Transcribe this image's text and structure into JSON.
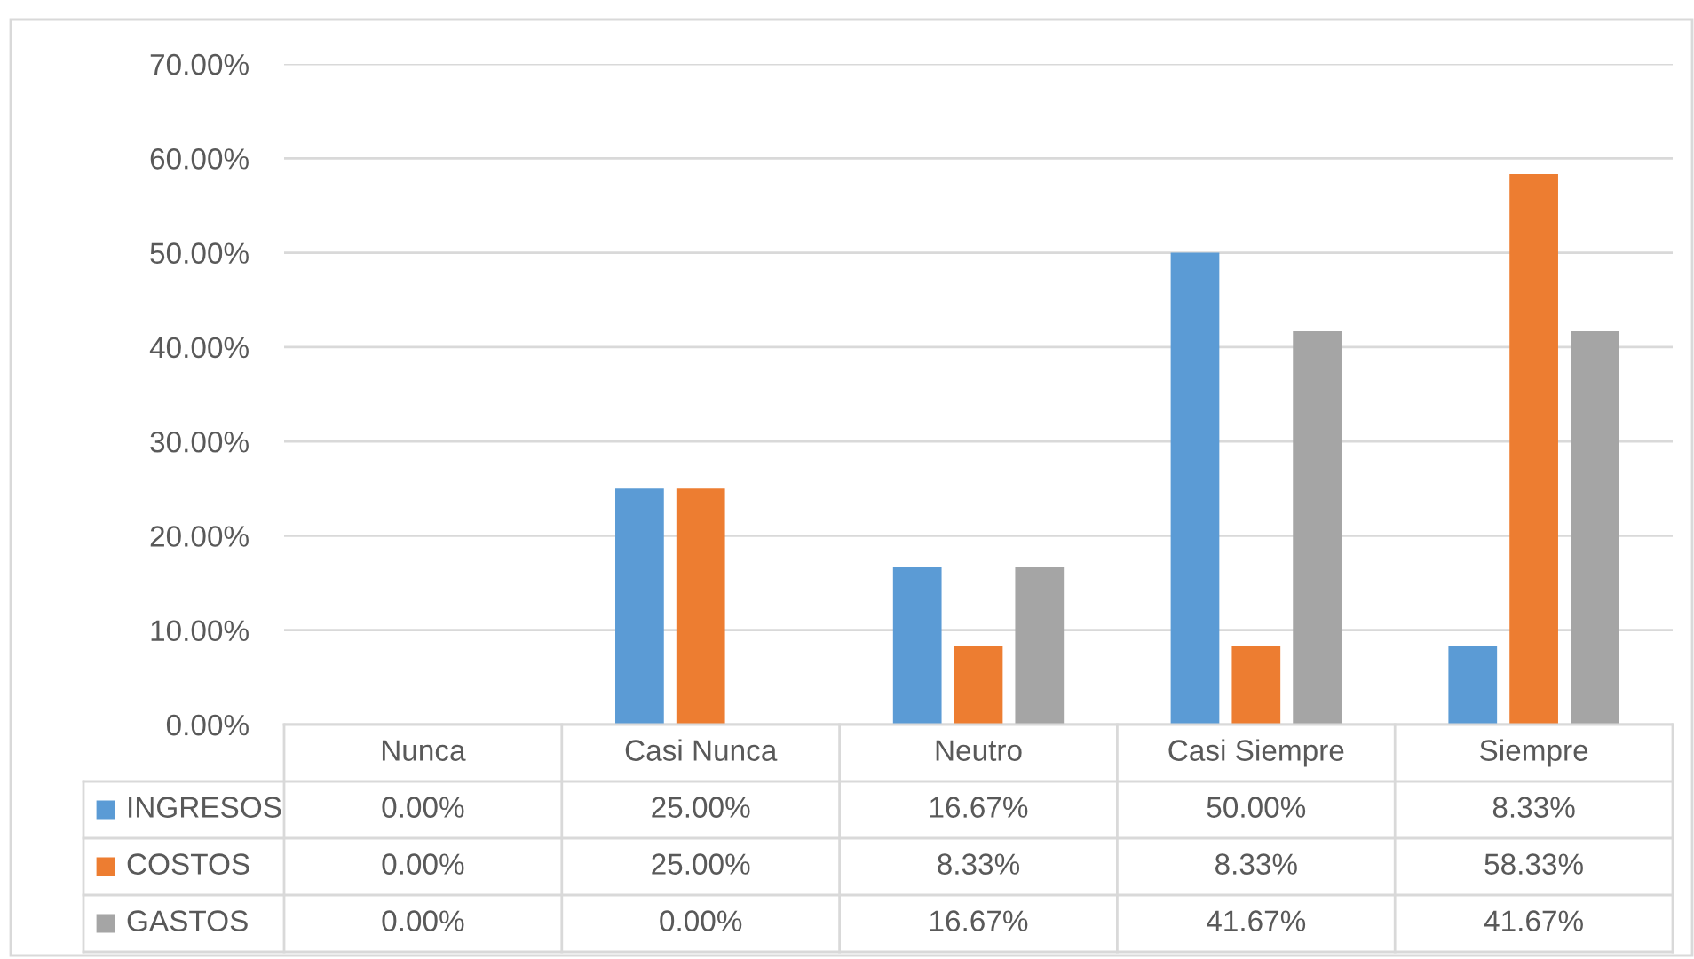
{
  "chart_data": {
    "type": "bar",
    "categories": [
      "Nunca",
      "Casi Nunca",
      "Neutro",
      "Casi Siempre",
      "Siempre"
    ],
    "series": [
      {
        "name": "INGRESOS",
        "color": "#5b9bd5",
        "values": [
          0,
          25,
          16.67,
          50,
          8.33
        ],
        "value_labels": [
          "0.00%",
          "25.00%",
          "16.67%",
          "50.00%",
          "8.33%"
        ]
      },
      {
        "name": "COSTOS",
        "color": "#ed7d31",
        "values": [
          0,
          25,
          8.33,
          8.33,
          58.33
        ],
        "value_labels": [
          "0.00%",
          "25.00%",
          "8.33%",
          "8.33%",
          "58.33%"
        ]
      },
      {
        "name": "GASTOS",
        "color": "#a5a5a5",
        "values": [
          0,
          0,
          16.67,
          41.67,
          41.67
        ],
        "value_labels": [
          "0.00%",
          "0.00%",
          "16.67%",
          "41.67%",
          "41.67%"
        ]
      }
    ],
    "ylim": [
      0,
      70
    ],
    "yticks": [
      {
        "value": 0,
        "label": "0.00%"
      },
      {
        "value": 10,
        "label": "10.00%"
      },
      {
        "value": 20,
        "label": "20.00%"
      },
      {
        "value": 30,
        "label": "30.00%"
      },
      {
        "value": 40,
        "label": "40.00%"
      },
      {
        "value": 50,
        "label": "50.00%"
      },
      {
        "value": 60,
        "label": "60.00%"
      },
      {
        "value": 70,
        "label": "70.00%"
      }
    ],
    "grid": "y",
    "legend": "bottom"
  }
}
